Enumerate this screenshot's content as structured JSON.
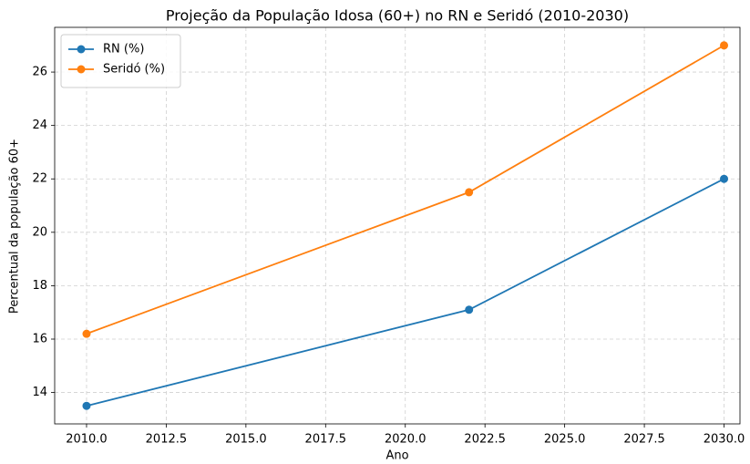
{
  "chart_data": {
    "type": "line",
    "title": "Projeção da População Idosa (60+) no RN e Seridó (2010-2030)",
    "xlabel": "Ano",
    "ylabel": "Percentual da população 60+",
    "x": [
      2010,
      2022,
      2030
    ],
    "series": [
      {
        "name": "RN (%)",
        "color": "#1f77b4",
        "values": [
          13.5,
          17.1,
          22.0
        ]
      },
      {
        "name": "Seridó (%)",
        "color": "#ff7f0e",
        "values": [
          16.2,
          21.5,
          27.0
        ]
      }
    ],
    "xlim": [
      2009,
      2030.5
    ],
    "xticks": [
      {
        "value": 2010,
        "label": "2010.0"
      },
      {
        "value": 2012.5,
        "label": "2012.5"
      },
      {
        "value": 2015,
        "label": "2015.0"
      },
      {
        "value": 2017.5,
        "label": "2017.5"
      },
      {
        "value": 2020,
        "label": "2020.0"
      },
      {
        "value": 2022.5,
        "label": "2022.5"
      },
      {
        "value": 2025,
        "label": "2025.0"
      },
      {
        "value": 2027.5,
        "label": "2027.5"
      },
      {
        "value": 2030,
        "label": "2030.0"
      }
    ],
    "ylim": [
      12.825,
      27.675
    ],
    "yticks": [
      14,
      16,
      18,
      20,
      22,
      24,
      26
    ],
    "grid": true,
    "legend": "upper-left"
  }
}
